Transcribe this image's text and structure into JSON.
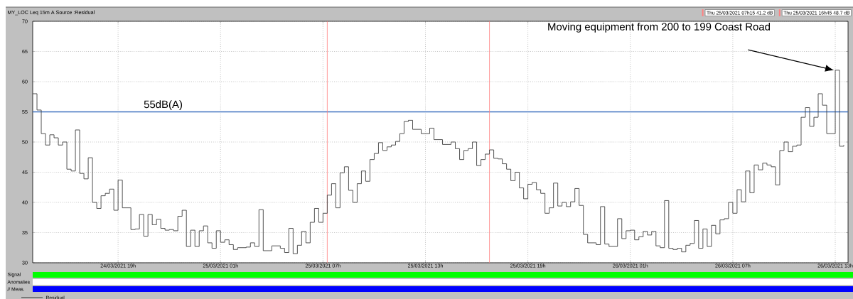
{
  "chart_data": {
    "type": "step",
    "title": "MY_LOC   Leq 15m  A  Source :Residual",
    "x": [
      "2021-03-24T14:00",
      "2021-03-24T14:15",
      "2021-03-24T14:30",
      "2021-03-24T14:45",
      "2021-03-24T15:00",
      "2021-03-24T15:15",
      "2021-03-24T15:30",
      "2021-03-24T15:45",
      "2021-03-24T16:00",
      "2021-03-24T16:15",
      "2021-03-24T16:30",
      "2021-03-24T16:45",
      "2021-03-24T17:00",
      "2021-03-24T17:15",
      "2021-03-24T17:30",
      "2021-03-24T17:45",
      "2021-03-24T18:00",
      "2021-03-24T18:15",
      "2021-03-24T18:30",
      "2021-03-24T18:45",
      "2021-03-24T19:00",
      "2021-03-24T19:15",
      "2021-03-24T19:45",
      "2021-03-24T20:00",
      "2021-03-24T20:15",
      "2021-03-24T20:30",
      "2021-03-24T20:45",
      "2021-03-24T21:00",
      "2021-03-24T21:15",
      "2021-03-24T21:30",
      "2021-03-24T21:45",
      "2021-03-24T22:00",
      "2021-03-24T22:15",
      "2021-03-24T22:30",
      "2021-03-24T22:45",
      "2021-03-24T23:00",
      "2021-03-24T23:15",
      "2021-03-24T23:30",
      "2021-03-24T23:45",
      "2021-03-25T00:00",
      "2021-03-25T00:15",
      "2021-03-25T00:30",
      "2021-03-25T00:45",
      "2021-03-25T01:00",
      "2021-03-25T01:15",
      "2021-03-25T01:30",
      "2021-03-25T01:45",
      "2021-03-25T02:00",
      "2021-03-25T02:30",
      "2021-03-25T02:45",
      "2021-03-25T03:00",
      "2021-03-25T03:15",
      "2021-03-25T03:30",
      "2021-03-25T04:00",
      "2021-03-25T04:30",
      "2021-03-25T04:45",
      "2021-03-25T05:00",
      "2021-03-25T05:15",
      "2021-03-25T05:30",
      "2021-03-25T05:45",
      "2021-03-25T06:00",
      "2021-03-25T06:15",
      "2021-03-25T06:30",
      "2021-03-25T06:45",
      "2021-03-25T07:00",
      "2021-03-25T07:15",
      "2021-03-25T07:30",
      "2021-03-25T07:45",
      "2021-03-25T08:00",
      "2021-03-25T08:15",
      "2021-03-25T08:30",
      "2021-03-25T08:45",
      "2021-03-25T09:00",
      "2021-03-25T09:15",
      "2021-03-25T09:30",
      "2021-03-25T09:45",
      "2021-03-25T10:00",
      "2021-03-25T10:15",
      "2021-03-25T10:30",
      "2021-03-25T10:45",
      "2021-03-25T11:00",
      "2021-03-25T11:15",
      "2021-03-25T11:30",
      "2021-03-25T11:45",
      "2021-03-25T12:00",
      "2021-03-25T12:15",
      "2021-03-25T12:45",
      "2021-03-25T13:15",
      "2021-03-25T13:30",
      "2021-03-25T14:00",
      "2021-03-25T14:30",
      "2021-03-25T14:45",
      "2021-03-25T15:00",
      "2021-03-25T15:15",
      "2021-03-25T15:30",
      "2021-03-25T15:45",
      "2021-03-25T16:00",
      "2021-03-25T16:15",
      "2021-03-25T16:30",
      "2021-03-25T16:45",
      "2021-03-25T17:00",
      "2021-03-25T17:15",
      "2021-03-25T17:30",
      "2021-03-25T17:45",
      "2021-03-25T18:00",
      "2021-03-25T18:15",
      "2021-03-25T18:30",
      "2021-03-25T18:45",
      "2021-03-25T19:00",
      "2021-03-25T19:15",
      "2021-03-25T19:30",
      "2021-03-25T19:45",
      "2021-03-25T20:00",
      "2021-03-25T20:15",
      "2021-03-25T20:30",
      "2021-03-25T20:45",
      "2021-03-25T21:00",
      "2021-03-25T21:15",
      "2021-03-25T21:30",
      "2021-03-25T21:45",
      "2021-03-25T22:00",
      "2021-03-25T22:15",
      "2021-03-25T22:30",
      "2021-03-25T23:00",
      "2021-03-25T23:15",
      "2021-03-25T23:30",
      "2021-03-25T23:45",
      "2021-03-26T00:15",
      "2021-03-26T00:30",
      "2021-03-26T00:45",
      "2021-03-26T01:00",
      "2021-03-26T01:15",
      "2021-03-26T01:30",
      "2021-03-26T01:45",
      "2021-03-26T02:00",
      "2021-03-26T02:15",
      "2021-03-26T02:30",
      "2021-03-26T02:45",
      "2021-03-26T03:00",
      "2021-03-26T03:15",
      "2021-03-26T03:30",
      "2021-03-26T03:45",
      "2021-03-26T04:00",
      "2021-03-26T04:15",
      "2021-03-26T04:30",
      "2021-03-26T04:45",
      "2021-03-26T05:00",
      "2021-03-26T05:15",
      "2021-03-26T05:30",
      "2021-03-26T05:45",
      "2021-03-26T06:00",
      "2021-03-26T06:15",
      "2021-03-26T06:30",
      "2021-03-26T06:45",
      "2021-03-26T07:00",
      "2021-03-26T07:15",
      "2021-03-26T07:30",
      "2021-03-26T07:45",
      "2021-03-26T08:00",
      "2021-03-26T08:15",
      "2021-03-26T08:30",
      "2021-03-26T08:45",
      "2021-03-26T09:00",
      "2021-03-26T09:15",
      "2021-03-26T09:30",
      "2021-03-26T09:45",
      "2021-03-26T10:00",
      "2021-03-26T10:15",
      "2021-03-26T10:30",
      "2021-03-26T10:45",
      "2021-03-26T11:00",
      "2021-03-26T11:15",
      "2021-03-26T11:30",
      "2021-03-26T11:45",
      "2021-03-26T12:00",
      "2021-03-26T12:15",
      "2021-03-26T12:30",
      "2021-03-26T13:00",
      "2021-03-26T13:15",
      "2021-03-26T13:30"
    ],
    "values": [
      58.0,
      55.3,
      51.4,
      49.5,
      51.2,
      50.7,
      49.5,
      50.0,
      45.5,
      45.2,
      52.0,
      44.8,
      43.9,
      47.4,
      40.0,
      39.0,
      41.1,
      41.5,
      42.2,
      38.7,
      43.7,
      39.1,
      35.5,
      35.6,
      38.0,
      34.4,
      38.0,
      36.3,
      37.2,
      35.7,
      35.4,
      35.5,
      35.3,
      37.7,
      38.7,
      32.7,
      35.4,
      32.7,
      35.3,
      36.1,
      33.3,
      32.4,
      35.3,
      33.4,
      33.8,
      33.0,
      32.2,
      32.5,
      32.6,
      33.3,
      32.7,
      38.8,
      32.0,
      32.8,
      32.4,
      31.7,
      35.7,
      31.5,
      32.9,
      35.2,
      33.3,
      36.7,
      39.0,
      36.7,
      38.2,
      41.2,
      43.1,
      39.1,
      44.9,
      45.9,
      42.0,
      40.0,
      43.1,
      45.2,
      43.5,
      47.1,
      48.1,
      49.9,
      48.6,
      49.2,
      49.5,
      50.1,
      51.4,
      53.4,
      53.6,
      52.1,
      51.4,
      52.3,
      50.4,
      49.6,
      50.0,
      48.9,
      47.1,
      48.6,
      48.9,
      50.0,
      46.1,
      47.1,
      48.0,
      48.7,
      47.3,
      47.2,
      46.4,
      45.5,
      43.6,
      45.0,
      42.4,
      40.6,
      43.0,
      43.3,
      42.1,
      41.5,
      38.2,
      39.1,
      43.2,
      39.4,
      40.0,
      39.3,
      40.1,
      42.3,
      39.5,
      34.7,
      33.3,
      33.0,
      39.3,
      33.1,
      32.7,
      37.3,
      34.0,
      35.3,
      35.4,
      33.8,
      34.3,
      35.2,
      34.6,
      35.2,
      32.8,
      32.5,
      40.3,
      32.4,
      32.2,
      32.4,
      31.8,
      32.9,
      33.2,
      37.0,
      32.4,
      35.6,
      32.7,
      36.2,
      34.8,
      37.1,
      37.3,
      40.0,
      38.2,
      42.1,
      40.1,
      45.2,
      41.6,
      46.2,
      45.4,
      46.5,
      46.2,
      45.9,
      42.9,
      48.6,
      50.0,
      48.4,
      49.3,
      49.5,
      54.1,
      55.7,
      52.6,
      54.1,
      58.0,
      56.1,
      51.4,
      61.9,
      49.3,
      49.5
    ],
    "color": "#404040",
    "xlim": [
      "2021-03-24T14:00",
      "2021-03-26T13:45"
    ],
    "xticks": [
      {
        "value": "2021-03-24T19:00",
        "label": "24/03/2021 19h"
      },
      {
        "value": "2021-03-25T01:00",
        "label": "25/03/2021 01h"
      },
      {
        "value": "2021-03-25T07:00",
        "label": "25/03/2021 07h"
      },
      {
        "value": "2021-03-25T13:00",
        "label": "25/03/2021 13h"
      },
      {
        "value": "2021-03-25T19:00",
        "label": "25/03/2021 19h"
      },
      {
        "value": "2021-03-26T01:00",
        "label": "26/03/2021 01h"
      },
      {
        "value": "2021-03-26T07:00",
        "label": "26/03/2021 07h"
      },
      {
        "value": "2021-03-26T13:00",
        "label": "26/03/2021 13h"
      }
    ],
    "ylim": [
      30,
      70
    ],
    "yticks": [
      30,
      35,
      40,
      45,
      50,
      55,
      60,
      65,
      70
    ],
    "grid": true,
    "marker": "none",
    "line_style": "solid",
    "legend": "top right",
    "ref_lines": [
      {
        "axis": "y",
        "value": 55,
        "label": "55dB(A)",
        "color": "#3d6fbf"
      },
      {
        "axis": "x",
        "value": "2021-03-25T07:15",
        "label": "Thu 25/03/2021 07h15  41.2 dB",
        "color": "#ff8080"
      },
      {
        "axis": "x",
        "value": "2021-03-25T16:45",
        "label": "Thu 25/03/2021 16h45  48.7 dB",
        "color": "#ff8080"
      }
    ],
    "annotations": [
      "Moving equipment from 200 to 199 Coast Road",
      "Signal",
      "Anomalies",
      "// Meas.",
      "Residual"
    ]
  }
}
